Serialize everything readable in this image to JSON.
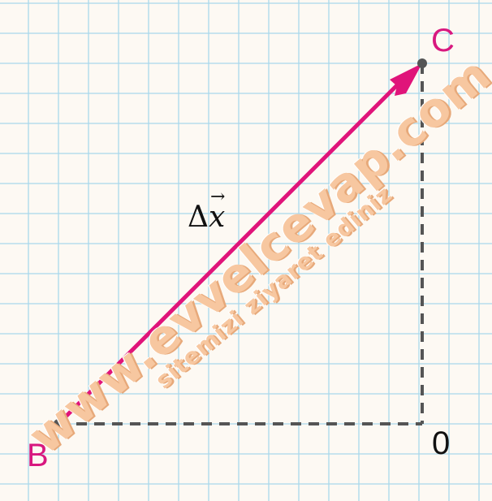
{
  "points": {
    "C": {
      "label": "C"
    },
    "B": {
      "label": "B"
    },
    "O": {
      "label": "0"
    }
  },
  "vector_label": {
    "delta": "Δ",
    "symbol": "x",
    "arrow": "→"
  },
  "watermark": {
    "main": "www.evvelcevap.com",
    "sub": "sitemizi ziyaret ediniz"
  },
  "colors": {
    "background": "#fdf9f3",
    "grid": "#a9d8ec",
    "vector": "#e0147a",
    "point_label": "#d8187f",
    "dashed": "#555555",
    "point": "#555555"
  }
}
